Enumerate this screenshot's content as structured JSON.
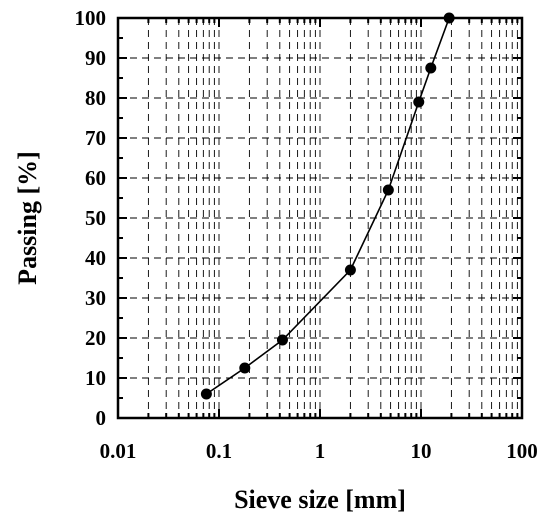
{
  "chart_data": {
    "type": "line",
    "xlabel": "Sieve size [mm]",
    "ylabel": "Passing [%]",
    "x_scale": "log",
    "xlim": [
      0.01,
      100
    ],
    "ylim": [
      0,
      100
    ],
    "x_ticks": [
      0.01,
      0.1,
      1,
      10,
      100
    ],
    "x_tick_labels": [
      "0.01",
      "0.1",
      "1",
      "10",
      "100"
    ],
    "y_ticks": [
      0,
      10,
      20,
      30,
      40,
      50,
      60,
      70,
      80,
      90,
      100
    ],
    "y_tick_labels": [
      "0",
      "10",
      "20",
      "30",
      "40",
      "50",
      "60",
      "70",
      "80",
      "90",
      "100"
    ],
    "grid": true,
    "grid_style": "dashed",
    "marker": "circle",
    "line_color": "#000000",
    "x": [
      0.075,
      0.18,
      0.425,
      2.0,
      4.75,
      9.5,
      12.5,
      19.0
    ],
    "y": [
      6,
      12.5,
      19.5,
      37,
      57,
      79,
      87.5,
      100
    ]
  }
}
